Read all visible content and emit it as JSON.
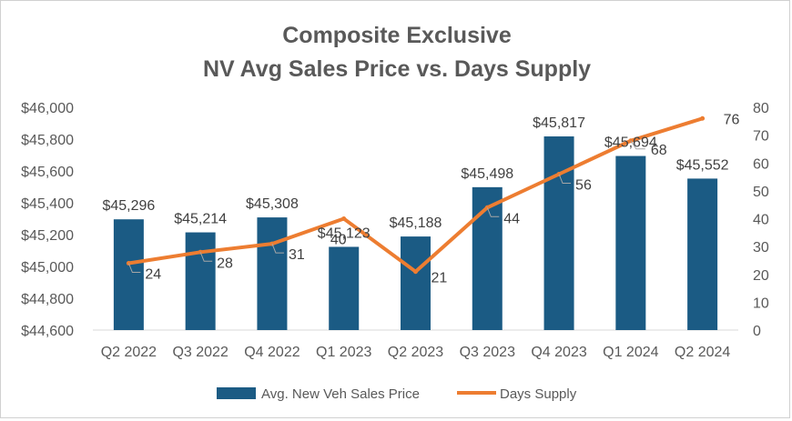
{
  "chart_data": {
    "type": "bar+line",
    "title_line1": "Composite Exclusive",
    "title_line2": "NV Avg Sales Price vs. Days Supply",
    "categories": [
      "Q2 2022",
      "Q3 2022",
      "Q4 2022",
      "Q1 2023",
      "Q2 2023",
      "Q3 2023",
      "Q4 2023",
      "Q1 2024",
      "Q2 2024"
    ],
    "series": [
      {
        "name": "Avg. New Veh Sales Price",
        "type": "bar",
        "axis": "left",
        "color": "#1b5b84",
        "values": [
          45296,
          45214,
          45308,
          45123,
          45188,
          45498,
          45817,
          45694,
          45552
        ],
        "labels": [
          "$45,296",
          "$45,214",
          "$45,308",
          "$45,123",
          "$45,188",
          "$45,498",
          "$45,817",
          "$45,694",
          "$45,552"
        ]
      },
      {
        "name": "Days Supply",
        "type": "line",
        "axis": "right",
        "color": "#ed7d31",
        "values": [
          24,
          28,
          31,
          40,
          21,
          44,
          56,
          68,
          76
        ],
        "labels": [
          "24",
          "28",
          "31",
          "40",
          "21",
          "44",
          "56",
          "68",
          "76"
        ]
      }
    ],
    "y_left": {
      "min": 44600,
      "max": 46000,
      "step": 200,
      "tick_labels": [
        "$44,600",
        "$44,800",
        "$45,000",
        "$45,200",
        "$45,400",
        "$45,600",
        "$45,800",
        "$46,000"
      ]
    },
    "y_right": {
      "min": 0,
      "max": 80,
      "step": 10,
      "tick_labels": [
        "0",
        "10",
        "20",
        "30",
        "40",
        "50",
        "60",
        "70",
        "80"
      ]
    },
    "grid": false,
    "legend_position": "bottom"
  }
}
